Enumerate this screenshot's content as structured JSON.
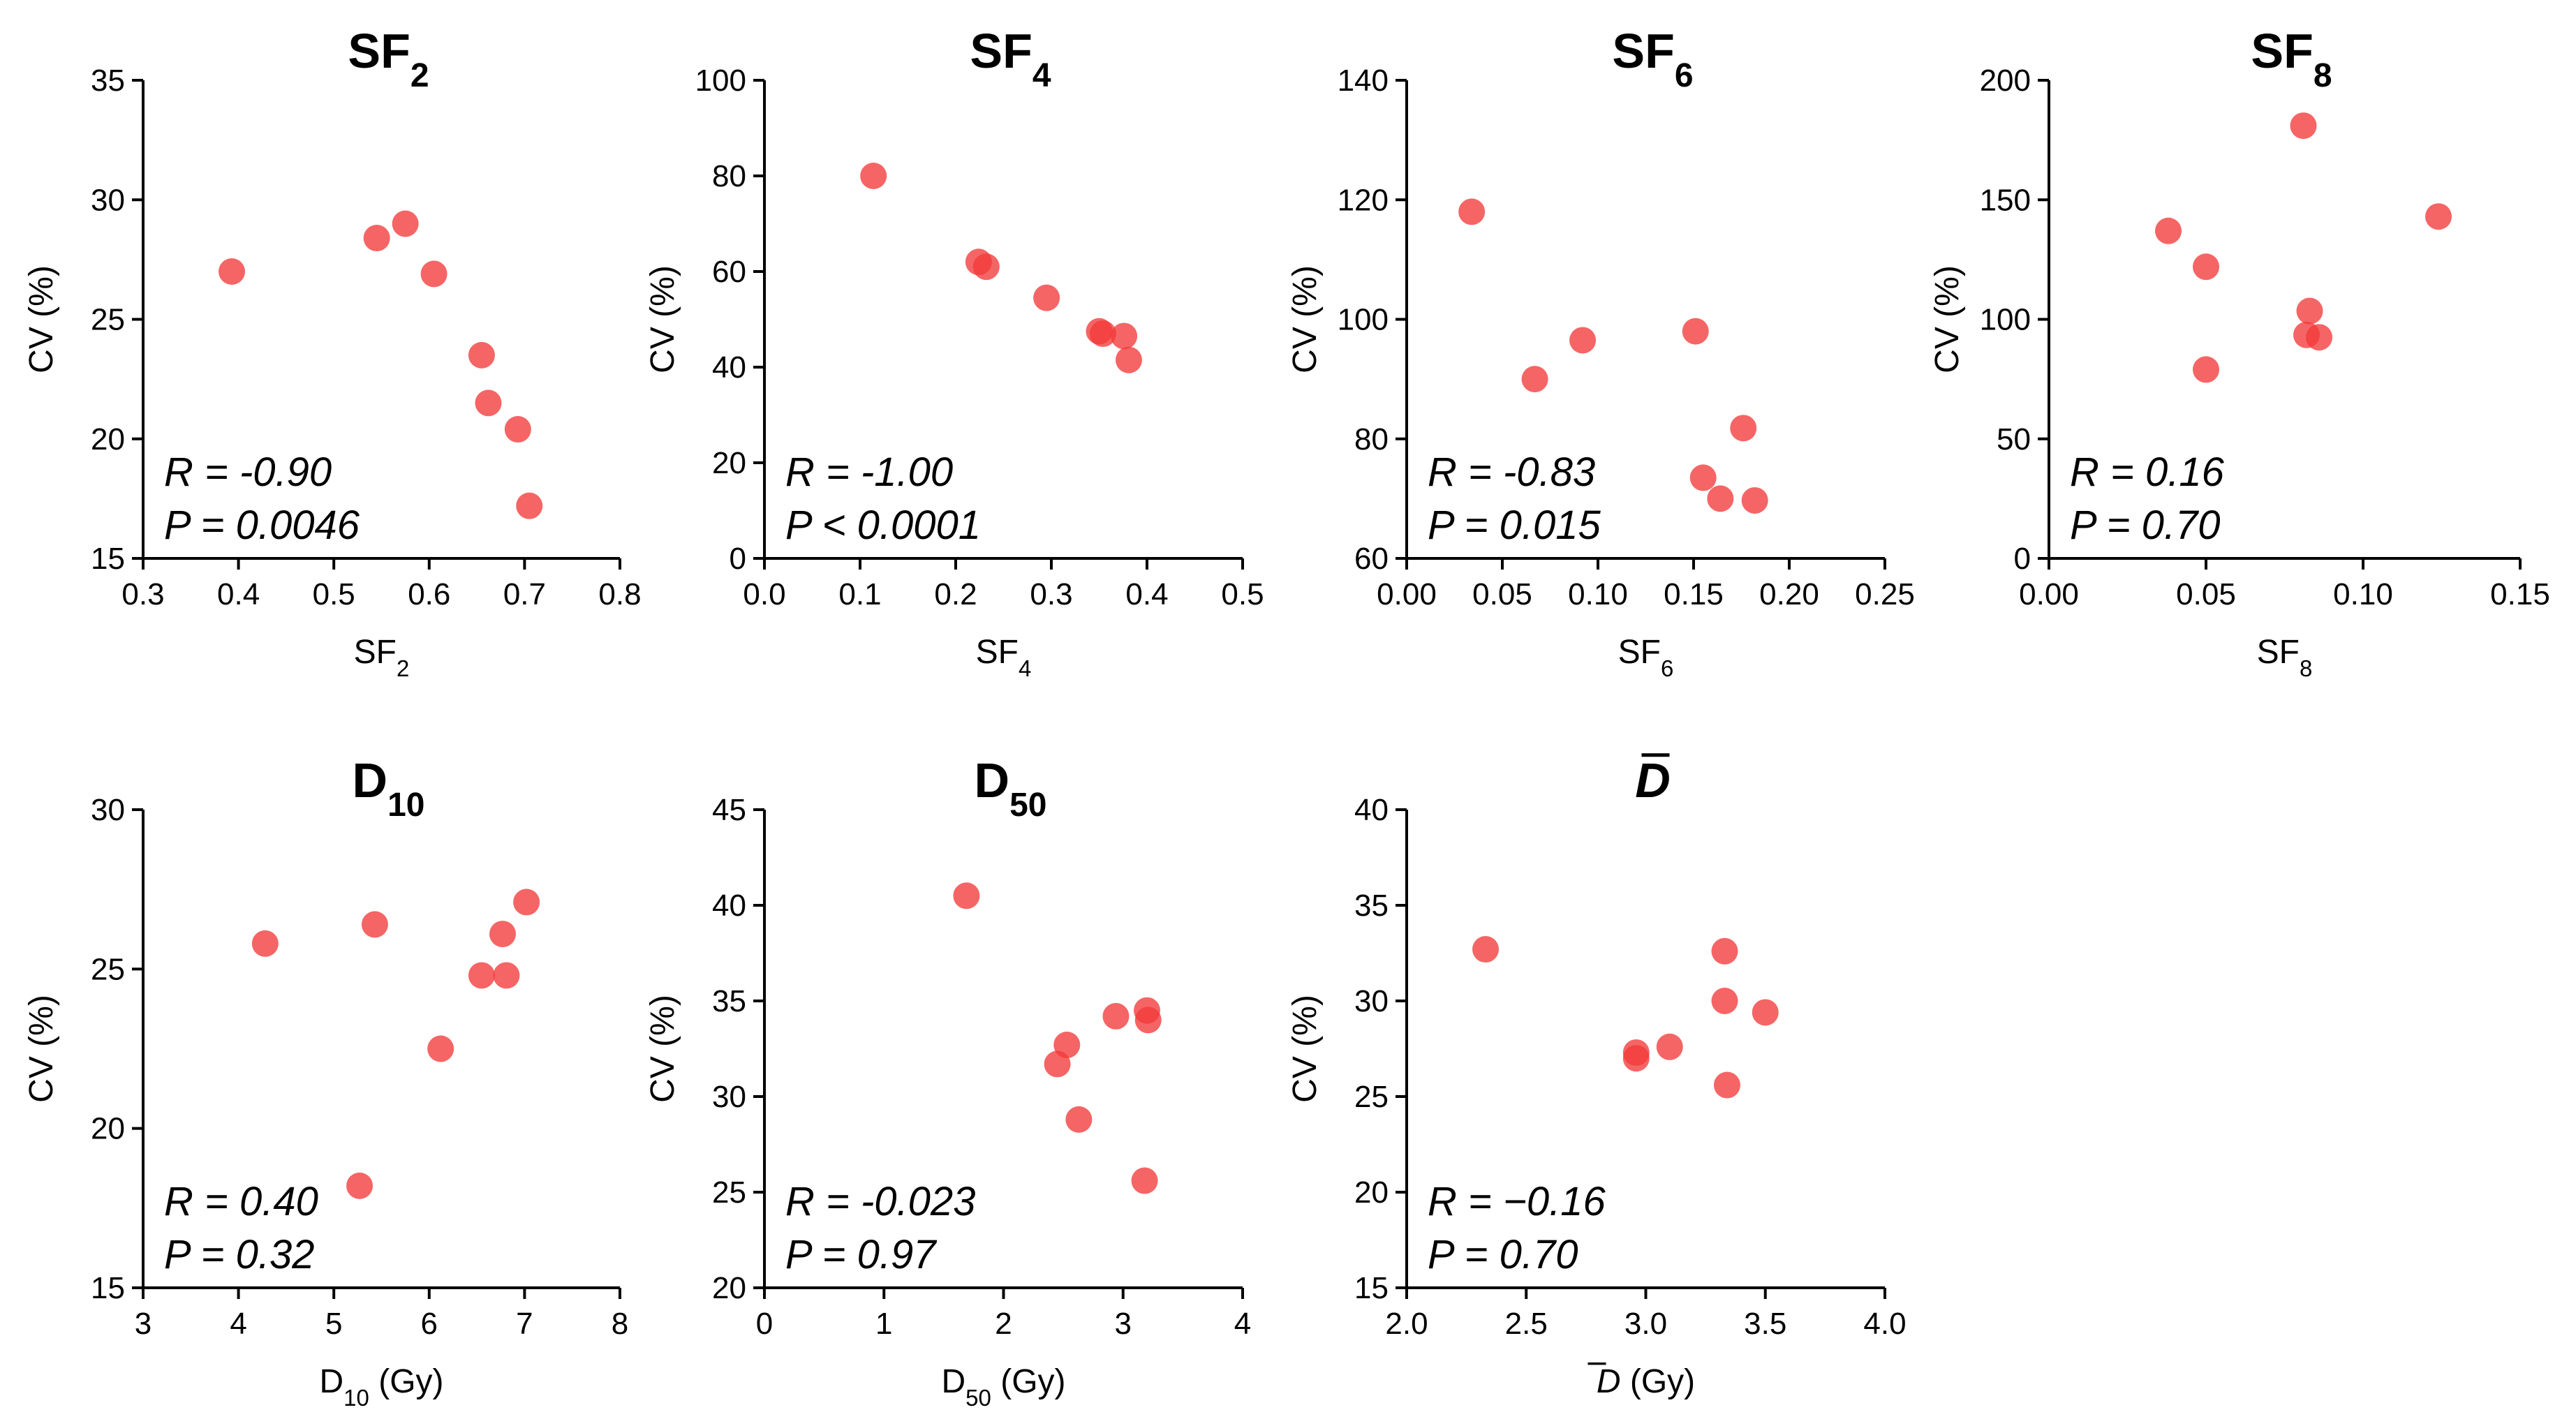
{
  "figure": {
    "marker_color": "#f23a3a"
  },
  "chart_data": [
    {
      "type": "scatter",
      "title": {
        "base": "SF",
        "sub": "2",
        "italic": false,
        "bar": false
      },
      "xlabel": {
        "base": "SF",
        "sub": "2",
        "suffix": "",
        "italic": false,
        "bar": false
      },
      "ylabel": "CV (%)",
      "xlim": [
        0.3,
        0.8
      ],
      "ylim": [
        15,
        35
      ],
      "xticks": [
        "0.3",
        "0.4",
        "0.5",
        "0.6",
        "0.7",
        "0.8"
      ],
      "yticks": [
        "15",
        "20",
        "25",
        "30",
        "35"
      ],
      "annotation": {
        "r": "R = -0.90",
        "p": "P = 0.0046"
      },
      "points": [
        [
          0.393,
          27.0
        ],
        [
          0.545,
          28.4
        ],
        [
          0.575,
          29.0
        ],
        [
          0.605,
          26.9
        ],
        [
          0.655,
          23.5
        ],
        [
          0.662,
          21.5
        ],
        [
          0.693,
          20.4
        ],
        [
          0.705,
          17.2
        ]
      ]
    },
    {
      "type": "scatter",
      "title": {
        "base": "SF",
        "sub": "4",
        "italic": false,
        "bar": false
      },
      "xlabel": {
        "base": "SF",
        "sub": "4",
        "suffix": "",
        "italic": false,
        "bar": false
      },
      "ylabel": "CV (%)",
      "xlim": [
        0.0,
        0.5
      ],
      "ylim": [
        0,
        100
      ],
      "xticks": [
        "0.0",
        "0.1",
        "0.2",
        "0.3",
        "0.4",
        "0.5"
      ],
      "yticks": [
        "0",
        "20",
        "40",
        "60",
        "80",
        "100"
      ],
      "annotation": {
        "r": "R = -1.00",
        "p": "P < 0.0001"
      },
      "points": [
        [
          0.114,
          80.0
        ],
        [
          0.224,
          62.0
        ],
        [
          0.232,
          61.0
        ],
        [
          0.295,
          54.5
        ],
        [
          0.35,
          47.5
        ],
        [
          0.354,
          47.0
        ],
        [
          0.376,
          46.5
        ],
        [
          0.381,
          41.5
        ]
      ]
    },
    {
      "type": "scatter",
      "title": {
        "base": "SF",
        "sub": "6",
        "italic": false,
        "bar": false
      },
      "xlabel": {
        "base": "SF",
        "sub": "6",
        "suffix": "",
        "italic": false,
        "bar": false
      },
      "ylabel": "CV (%)",
      "xlim": [
        0.0,
        0.25
      ],
      "ylim": [
        60,
        140
      ],
      "xticks": [
        "0.00",
        "0.05",
        "0.10",
        "0.15",
        "0.20",
        "0.25"
      ],
      "yticks": [
        "60",
        "80",
        "100",
        "120",
        "140"
      ],
      "annotation": {
        "r": "R = -0.83",
        "p": "P = 0.015"
      },
      "points": [
        [
          0.034,
          118.0
        ],
        [
          0.067,
          90.0
        ],
        [
          0.092,
          96.5
        ],
        [
          0.151,
          98.0
        ],
        [
          0.155,
          73.5
        ],
        [
          0.164,
          70.0
        ],
        [
          0.176,
          81.8
        ],
        [
          0.182,
          69.7
        ]
      ]
    },
    {
      "type": "scatter",
      "title": {
        "base": "SF",
        "sub": "8",
        "italic": false,
        "bar": false
      },
      "xlabel": {
        "base": "SF",
        "sub": "8",
        "suffix": "",
        "italic": false,
        "bar": false
      },
      "ylabel": "CV (%)",
      "xlim": [
        0.0,
        0.15
      ],
      "ylim": [
        0,
        200
      ],
      "xticks": [
        "0.00",
        "0.05",
        "0.10",
        "0.15"
      ],
      "yticks": [
        "0",
        "50",
        "100",
        "150",
        "200"
      ],
      "annotation": {
        "r": "R = 0.16",
        "p": "P = 0.70"
      },
      "points": [
        [
          0.038,
          137.0
        ],
        [
          0.05,
          122.0
        ],
        [
          0.05,
          79.0
        ],
        [
          0.081,
          181.0
        ],
        [
          0.082,
          93.5
        ],
        [
          0.083,
          103.5
        ],
        [
          0.086,
          92.5
        ],
        [
          0.124,
          143.0
        ]
      ]
    },
    {
      "type": "scatter",
      "title": {
        "base": "D",
        "sub": "10",
        "italic": false,
        "bar": false
      },
      "xlabel": {
        "base": "D",
        "sub": "10",
        "suffix": " (Gy)",
        "italic": false,
        "bar": false
      },
      "ylabel": "CV (%)",
      "xlim": [
        3,
        8
      ],
      "ylim": [
        15,
        30
      ],
      "xticks": [
        "3",
        "4",
        "5",
        "6",
        "7",
        "8"
      ],
      "yticks": [
        "15",
        "20",
        "25",
        "30"
      ],
      "annotation": {
        "r": "R = 0.40",
        "p": "P = 0.32"
      },
      "points": [
        [
          4.28,
          25.8
        ],
        [
          5.27,
          18.2
        ],
        [
          5.43,
          26.4
        ],
        [
          6.12,
          22.5
        ],
        [
          6.55,
          24.8
        ],
        [
          6.77,
          26.1
        ],
        [
          6.81,
          24.8
        ],
        [
          7.02,
          27.1
        ]
      ]
    },
    {
      "type": "scatter",
      "title": {
        "base": "D",
        "sub": "50",
        "italic": false,
        "bar": false
      },
      "xlabel": {
        "base": "D",
        "sub": "50",
        "suffix": " (Gy)",
        "italic": false,
        "bar": false
      },
      "ylabel": "CV (%)",
      "xlim": [
        0,
        4
      ],
      "ylim": [
        20,
        45
      ],
      "xticks": [
        "0",
        "1",
        "2",
        "3",
        "4"
      ],
      "yticks": [
        "20",
        "25",
        "30",
        "35",
        "40",
        "45"
      ],
      "annotation": {
        "r": "R = -0.023",
        "p": "P = 0.97"
      },
      "points": [
        [
          1.69,
          40.5
        ],
        [
          2.45,
          31.7
        ],
        [
          2.53,
          32.7
        ],
        [
          2.63,
          28.8
        ],
        [
          2.94,
          34.2
        ],
        [
          3.18,
          25.6
        ],
        [
          3.2,
          34.5
        ],
        [
          3.21,
          34.0
        ]
      ]
    },
    {
      "type": "scatter",
      "title": {
        "base": "D",
        "sub": "",
        "italic": true,
        "bar": true
      },
      "xlabel": {
        "base": "D",
        "sub": "",
        "suffix": " (Gy)",
        "italic": true,
        "bar": true
      },
      "ylabel": "CV (%)",
      "xlim": [
        2.0,
        4.0
      ],
      "ylim": [
        15,
        40
      ],
      "xticks": [
        "2.0",
        "2.5",
        "3.0",
        "3.5",
        "4.0"
      ],
      "yticks": [
        "15",
        "20",
        "25",
        "30",
        "35",
        "40"
      ],
      "annotation": {
        "r": "R = −0.16",
        "p": "P = 0.70"
      },
      "points": [
        [
          2.33,
          32.7
        ],
        [
          2.96,
          27.0
        ],
        [
          2.96,
          27.3
        ],
        [
          3.1,
          27.6
        ],
        [
          3.33,
          32.6
        ],
        [
          3.33,
          30.0
        ],
        [
          3.34,
          25.6
        ],
        [
          3.5,
          29.4
        ]
      ]
    }
  ]
}
